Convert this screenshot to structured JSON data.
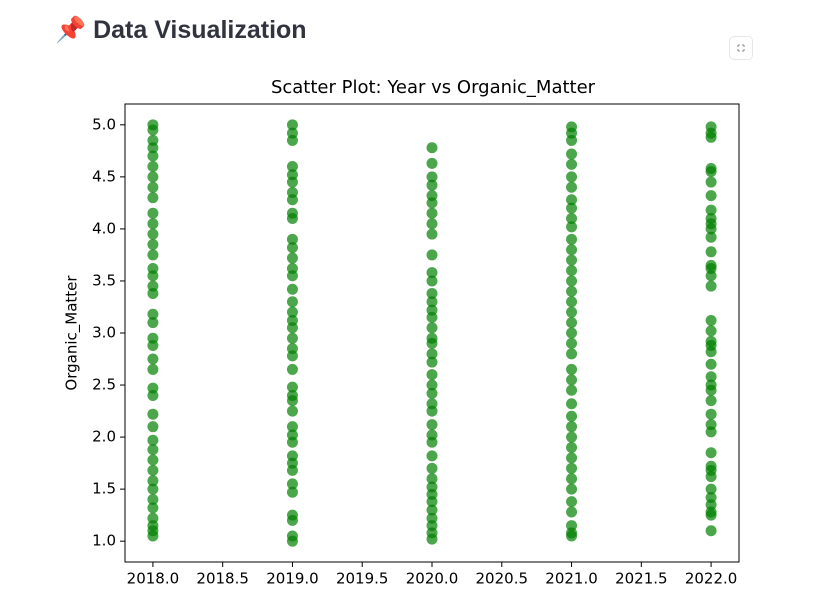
{
  "header": {
    "title": "📌 Data Visualization"
  },
  "chart_data": {
    "type": "scatter",
    "title": "Scatter Plot: Year vs Organic_Matter",
    "ylabel": "Organic_Matter",
    "color": "green",
    "xlim": [
      2017.8,
      2022.2
    ],
    "ylim": [
      0.8,
      5.2
    ],
    "xticks": [
      {
        "value": 2018,
        "label": "2018.0"
      },
      {
        "value": 2018.5,
        "label": "2018.5"
      },
      {
        "value": 2019,
        "label": "2019.0"
      },
      {
        "value": 2019.5,
        "label": "2019.5"
      },
      {
        "value": 2020,
        "label": "2020.0"
      },
      {
        "value": 2020.5,
        "label": "2020.5"
      },
      {
        "value": 2021,
        "label": "2021.0"
      },
      {
        "value": 2021.5,
        "label": "2021.5"
      },
      {
        "value": 2022,
        "label": "2022.0"
      }
    ],
    "yticks": [
      {
        "value": 1,
        "label": "1.0"
      },
      {
        "value": 1.5,
        "label": "1.5"
      },
      {
        "value": 2,
        "label": "2.0"
      },
      {
        "value": 2.5,
        "label": "2.5"
      },
      {
        "value": 3,
        "label": "3.0"
      },
      {
        "value": 3.5,
        "label": "3.5"
      },
      {
        "value": 4,
        "label": "4.0"
      },
      {
        "value": 4.5,
        "label": "4.5"
      },
      {
        "value": 5,
        "label": "5.0"
      }
    ],
    "x": [
      2018,
      2018,
      2018,
      2018,
      2018,
      2018,
      2018,
      2018,
      2018,
      2018,
      2018,
      2018,
      2018,
      2018,
      2018,
      2018,
      2018,
      2018,
      2018,
      2018,
      2018,
      2018,
      2018,
      2018,
      2018,
      2018,
      2018,
      2018,
      2018,
      2018,
      2018,
      2018,
      2018,
      2018,
      2018,
      2018,
      2018,
      2018,
      2018,
      2018,
      2019,
      2019,
      2019,
      2019,
      2019,
      2019,
      2019,
      2019,
      2019,
      2019,
      2019,
      2019,
      2019,
      2019,
      2019,
      2019,
      2019,
      2019,
      2019,
      2019,
      2019,
      2019,
      2019,
      2019,
      2019,
      2019,
      2019,
      2019,
      2019,
      2019,
      2019,
      2019,
      2019,
      2019,
      2019,
      2019,
      2019,
      2019,
      2019,
      2019,
      2020,
      2020,
      2020,
      2020,
      2020,
      2020,
      2020,
      2020,
      2020,
      2020,
      2020,
      2020,
      2020,
      2020,
      2020,
      2020,
      2020,
      2020,
      2020,
      2020,
      2020,
      2020,
      2020,
      2020,
      2020,
      2020,
      2020,
      2020,
      2020,
      2020,
      2020,
      2020,
      2020,
      2020,
      2020,
      2020,
      2020,
      2020,
      2020,
      2020,
      2021,
      2021,
      2021,
      2021,
      2021,
      2021,
      2021,
      2021,
      2021,
      2021,
      2021,
      2021,
      2021,
      2021,
      2021,
      2021,
      2021,
      2021,
      2021,
      2021,
      2021,
      2021,
      2021,
      2021,
      2021,
      2021,
      2021,
      2021,
      2021,
      2021,
      2021,
      2021,
      2021,
      2021,
      2021,
      2021,
      2021,
      2021,
      2021,
      2021,
      2022,
      2022,
      2022,
      2022,
      2022,
      2022,
      2022,
      2022,
      2022,
      2022,
      2022,
      2022,
      2022,
      2022,
      2022,
      2022,
      2022,
      2022,
      2022,
      2022,
      2022,
      2022,
      2022,
      2022,
      2022,
      2022,
      2022,
      2022,
      2022,
      2022,
      2022,
      2022,
      2022,
      2022,
      2022,
      2022,
      2022,
      2022,
      2022,
      2022
    ],
    "values": [
      5.0,
      4.95,
      4.85,
      4.78,
      4.7,
      4.6,
      4.5,
      4.4,
      4.3,
      4.15,
      4.05,
      3.95,
      3.85,
      3.75,
      3.62,
      3.55,
      3.45,
      3.38,
      3.18,
      3.1,
      2.95,
      2.88,
      2.75,
      2.65,
      2.47,
      2.4,
      2.22,
      2.1,
      1.97,
      1.88,
      1.78,
      1.68,
      1.58,
      1.5,
      1.4,
      1.32,
      1.22,
      1.15,
      1.1,
      1.05,
      5.0,
      4.92,
      4.85,
      4.6,
      4.52,
      4.45,
      4.35,
      4.28,
      4.15,
      4.1,
      3.9,
      3.82,
      3.72,
      3.62,
      3.55,
      3.42,
      3.3,
      3.2,
      3.12,
      3.05,
      2.95,
      2.85,
      2.78,
      2.65,
      2.48,
      2.4,
      2.35,
      2.25,
      2.1,
      2.02,
      1.95,
      1.82,
      1.75,
      1.68,
      1.55,
      1.47,
      1.25,
      1.2,
      1.05,
      1.0,
      4.78,
      4.63,
      4.5,
      4.42,
      4.32,
      4.25,
      4.15,
      4.05,
      3.95,
      3.75,
      3.58,
      3.5,
      3.38,
      3.3,
      3.22,
      3.15,
      3.05,
      2.9,
      2.8,
      2.72,
      2.6,
      2.5,
      2.42,
      2.32,
      2.25,
      2.12,
      2.02,
      1.95,
      1.82,
      1.7,
      1.6,
      1.52,
      1.45,
      1.38,
      1.3,
      1.22,
      1.15,
      1.08,
      1.02,
      2.95,
      4.98,
      4.92,
      4.85,
      4.72,
      4.62,
      4.5,
      4.4,
      4.28,
      4.2,
      4.1,
      4.02,
      3.9,
      3.8,
      3.7,
      3.6,
      3.5,
      3.4,
      3.3,
      3.2,
      3.1,
      3.0,
      2.9,
      2.8,
      2.65,
      2.55,
      2.45,
      2.32,
      2.2,
      2.1,
      2.0,
      1.9,
      1.8,
      1.7,
      1.6,
      1.5,
      1.38,
      1.28,
      1.15,
      1.08,
      1.05,
      4.98,
      4.88,
      4.58,
      4.45,
      4.32,
      4.18,
      4.1,
      4.0,
      3.92,
      3.78,
      3.65,
      3.55,
      3.45,
      3.12,
      3.02,
      2.92,
      2.82,
      2.7,
      2.58,
      2.45,
      2.35,
      2.22,
      2.12,
      2.05,
      1.85,
      1.72,
      1.62,
      1.5,
      1.42,
      1.35,
      1.25,
      1.1,
      4.92,
      4.55,
      4.05,
      3.62,
      2.88,
      2.5,
      1.68,
      1.28
    ]
  }
}
